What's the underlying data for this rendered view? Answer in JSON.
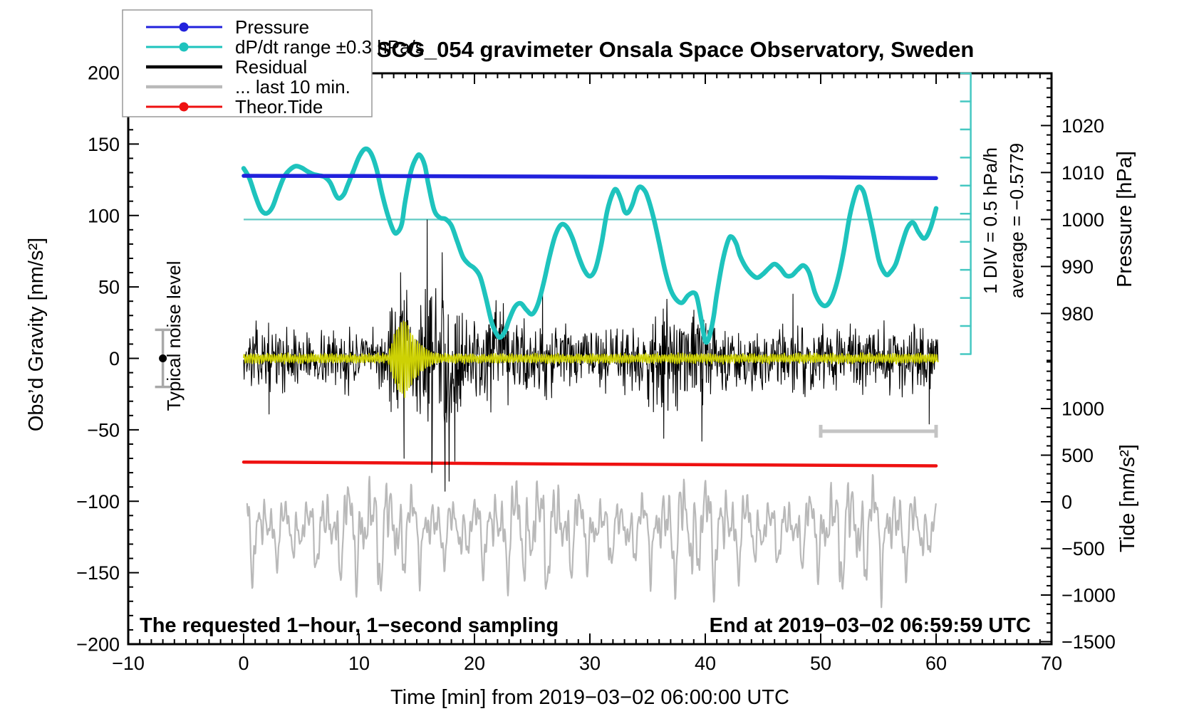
{
  "title": "SCG_054 gravimeter Onsala Space Observatory, Sweden",
  "annotations": {
    "bottom_left": "The requested 1−hour, 1−second sampling",
    "bottom_right": "End at 2019−03−02 06:59:59 UTC",
    "div_scale": "1 DIV = 0.5 hPa/h",
    "div_average": "average = −0.5779",
    "typical_noise": "Typical noise level"
  },
  "legend": {
    "items": [
      {
        "label": "Pressure",
        "color": "#2121dc",
        "dot": true,
        "width": 3
      },
      {
        "label": "dP/dt range ±0.3 hPa/s",
        "color": "#1ec3bd",
        "dot": true,
        "width": 3
      },
      {
        "label": "Residual",
        "color": "#000000",
        "dot": false,
        "width": 4.5
      },
      {
        "label": "... last 10 min.",
        "color": "#b9b9b9",
        "dot": false,
        "width": 4.5
      },
      {
        "label": "Theor.Tide",
        "color": "#ee1111",
        "dot": true,
        "width": 3
      }
    ]
  },
  "axes": {
    "x": {
      "label": "Time [min] from 2019−03−02 06:00:00 UTC",
      "range": [
        -10,
        70
      ],
      "minor_step": 1,
      "majors": [
        -10,
        0,
        10,
        20,
        30,
        40,
        50,
        60,
        70
      ],
      "major_labels": [
        "−10",
        "0",
        "10",
        "20",
        "30",
        "40",
        "50",
        "60",
        "70"
      ]
    },
    "y_left": {
      "label": "Obs’d Gravity [nm/s²]",
      "range": [
        -200,
        200
      ],
      "minor_step": 10,
      "majors": [
        -200,
        -150,
        -100,
        -50,
        0,
        50,
        100,
        150,
        200
      ],
      "major_labels": [
        "−200",
        "−150",
        "−100",
        "−50",
        "0",
        "50",
        "100",
        "150",
        "200"
      ]
    },
    "y_right_pressure": {
      "label": "Pressure [hPa]",
      "range": [
        970,
        1030
      ],
      "minor_step": 2,
      "majors": [
        980,
        990,
        1000,
        1010,
        1020
      ],
      "major_labels": [
        "980",
        "990",
        "1000",
        "1010",
        "1020"
      ]
    },
    "y_right_tide": {
      "label": "Tide [nm/s²]",
      "range": [
        -1500,
        1500
      ],
      "minor_step": 100,
      "majors": [
        -1500,
        -1000,
        -500,
        0,
        500,
        1000
      ],
      "major_labels": [
        "−1500",
        "−1000",
        "−500",
        "0",
        "500",
        "1000"
      ]
    }
  },
  "chart_data": {
    "type": "line",
    "x_units": "minutes",
    "grid": false,
    "legend_position": "top-left",
    "reference_line": {
      "pressure_hPa": 1000,
      "x_start": 0,
      "x_end": 63,
      "color": "#62cac4"
    },
    "div_bar": {
      "x": 63,
      "gravity_top": 199.5,
      "gravity_bottom": 3,
      "ticks": 11,
      "color": "#45c8c2"
    },
    "noise_level_marker": {
      "x": -7,
      "center": 0,
      "half_range": 20
    },
    "last10_scale_bar": {
      "x_start": 50,
      "x_end": 60,
      "gravity_y": -51
    },
    "series": [
      {
        "name": "pressure",
        "color": "#2121dc",
        "units": "hPa",
        "axis": "pressure",
        "stroke": 5.5,
        "points": [
          [
            0,
            1009.3
          ],
          [
            10,
            1009.25
          ],
          [
            20,
            1009.2
          ],
          [
            30,
            1009.1
          ],
          [
            40,
            1009.05
          ],
          [
            50,
            1009.0
          ],
          [
            60,
            1008.8
          ]
        ]
      },
      {
        "name": "dp_dt",
        "color": "#1ec3bd",
        "units": "gravity_axis",
        "axis": "gravity",
        "stroke": 6.5,
        "points": [
          [
            0,
            133
          ],
          [
            0.5,
            126
          ],
          [
            1,
            114
          ],
          [
            1.5,
            104
          ],
          [
            2,
            101.5
          ],
          [
            2.5,
            106
          ],
          [
            3,
            117
          ],
          [
            3.5,
            127
          ],
          [
            4,
            132
          ],
          [
            4.5,
            134.5
          ],
          [
            5,
            133.5
          ],
          [
            5.5,
            131
          ],
          [
            6,
            129
          ],
          [
            6.5,
            128
          ],
          [
            7,
            127
          ],
          [
            7.5,
            123
          ],
          [
            8,
            114
          ],
          [
            8.3,
            112
          ],
          [
            8.7,
            115
          ],
          [
            9,
            121
          ],
          [
            9.5,
            131
          ],
          [
            10,
            141
          ],
          [
            10.5,
            146.5
          ],
          [
            11,
            144
          ],
          [
            11.5,
            133
          ],
          [
            12,
            115
          ],
          [
            12.5,
            100
          ],
          [
            13,
            89
          ],
          [
            13.3,
            88
          ],
          [
            13.7,
            94
          ],
          [
            14,
            110
          ],
          [
            14.5,
            131
          ],
          [
            15,
            141
          ],
          [
            15.3,
            142
          ],
          [
            15.7,
            135
          ],
          [
            16,
            122
          ],
          [
            16.5,
            104
          ],
          [
            17,
            98.5
          ],
          [
            17.5,
            97.5
          ],
          [
            18,
            93
          ],
          [
            18.5,
            82
          ],
          [
            19,
            71
          ],
          [
            19.5,
            66
          ],
          [
            20,
            63
          ],
          [
            20.5,
            57
          ],
          [
            21,
            42
          ],
          [
            21.5,
            25
          ],
          [
            22,
            16
          ],
          [
            22.3,
            15
          ],
          [
            22.7,
            20
          ],
          [
            23,
            27
          ],
          [
            23.5,
            36
          ],
          [
            24,
            38.5
          ],
          [
            24.5,
            34
          ],
          [
            25,
            31
          ],
          [
            25.5,
            38
          ],
          [
            26,
            53
          ],
          [
            26.5,
            71
          ],
          [
            27,
            86
          ],
          [
            27.5,
            93.5
          ],
          [
            28,
            92
          ],
          [
            28.5,
            84
          ],
          [
            29,
            72
          ],
          [
            29.5,
            62
          ],
          [
            30,
            57.5
          ],
          [
            30.5,
            63
          ],
          [
            31,
            80
          ],
          [
            31.5,
            103
          ],
          [
            32,
            116
          ],
          [
            32.3,
            118
          ],
          [
            32.7,
            111
          ],
          [
            33,
            103
          ],
          [
            33.3,
            102
          ],
          [
            33.7,
            108
          ],
          [
            34,
            116
          ],
          [
            34.3,
            120
          ],
          [
            34.7,
            118
          ],
          [
            35,
            113
          ],
          [
            35.5,
            99
          ],
          [
            36,
            81
          ],
          [
            36.5,
            62
          ],
          [
            37,
            48
          ],
          [
            37.5,
            41
          ],
          [
            38,
            39
          ],
          [
            38.5,
            44
          ],
          [
            39,
            46
          ],
          [
            39.3,
            42
          ],
          [
            39.7,
            25
          ],
          [
            40,
            12
          ],
          [
            40.3,
            14
          ],
          [
            40.7,
            28
          ],
          [
            41,
            45
          ],
          [
            41.5,
            68
          ],
          [
            42,
            83
          ],
          [
            42.3,
            85
          ],
          [
            42.7,
            80
          ],
          [
            43,
            72
          ],
          [
            43.5,
            64
          ],
          [
            44,
            59
          ],
          [
            44.5,
            56.5
          ],
          [
            45,
            59
          ],
          [
            45.5,
            63
          ],
          [
            46,
            66
          ],
          [
            46.5,
            63
          ],
          [
            47,
            58
          ],
          [
            47.5,
            58
          ],
          [
            48,
            62
          ],
          [
            48.5,
            65
          ],
          [
            49,
            60
          ],
          [
            49.5,
            46
          ],
          [
            50,
            38.5
          ],
          [
            50.5,
            37
          ],
          [
            51,
            43
          ],
          [
            51.5,
            56
          ],
          [
            52,
            75
          ],
          [
            52.5,
            99
          ],
          [
            53,
            115
          ],
          [
            53.3,
            120
          ],
          [
            53.7,
            117
          ],
          [
            54,
            108
          ],
          [
            54.5,
            90
          ],
          [
            55,
            70
          ],
          [
            55.3,
            63
          ],
          [
            55.7,
            58.5
          ],
          [
            56,
            60
          ],
          [
            56.5,
            66
          ],
          [
            57,
            79
          ],
          [
            57.5,
            91
          ],
          [
            58,
            95
          ],
          [
            58.5,
            88
          ],
          [
            59,
            84
          ],
          [
            59.5,
            91
          ],
          [
            60,
            105
          ]
        ]
      },
      {
        "name": "theor_tide",
        "color": "#ee1111",
        "units": "gravity_axis",
        "axis": "gravity",
        "stroke": 4.5,
        "points": [
          [
            0,
            -72.6
          ],
          [
            15,
            -73.3
          ],
          [
            30,
            -74.0
          ],
          [
            45,
            -74.6
          ],
          [
            60,
            -75.2
          ]
        ]
      }
    ],
    "noise_series": [
      {
        "name": "residual",
        "color": "#000000",
        "axis": "gravity",
        "stroke": 1.1,
        "x_start": 0,
        "x_end": 60.2,
        "step": 0.045,
        "seed": 13,
        "mean": 0,
        "envelope": [
          [
            0,
            18
          ],
          [
            1,
            25
          ],
          [
            2,
            24
          ],
          [
            3,
            22
          ],
          [
            4,
            24
          ],
          [
            5,
            21
          ],
          [
            6,
            20
          ],
          [
            7,
            25
          ],
          [
            8,
            22
          ],
          [
            9,
            25
          ],
          [
            10,
            22
          ],
          [
            11,
            20
          ],
          [
            12,
            26
          ],
          [
            12.5,
            36
          ],
          [
            13,
            46
          ],
          [
            13.5,
            54
          ],
          [
            14,
            52
          ],
          [
            14.5,
            48
          ],
          [
            15,
            52
          ],
          [
            15.5,
            58
          ],
          [
            16,
            60
          ],
          [
            16.5,
            57
          ],
          [
            17,
            63
          ],
          [
            17.5,
            68
          ],
          [
            18,
            60
          ],
          [
            18.5,
            50
          ],
          [
            19,
            40
          ],
          [
            20,
            36
          ],
          [
            21,
            40
          ],
          [
            22,
            42
          ],
          [
            23,
            34
          ],
          [
            24,
            30
          ],
          [
            25,
            33
          ],
          [
            26,
            38
          ],
          [
            27,
            30
          ],
          [
            28,
            26
          ],
          [
            29,
            24
          ],
          [
            30,
            26
          ],
          [
            31,
            23
          ],
          [
            32,
            24
          ],
          [
            33,
            26
          ],
          [
            34,
            30
          ],
          [
            35,
            36
          ],
          [
            36,
            42
          ],
          [
            36.5,
            45
          ],
          [
            37,
            38
          ],
          [
            38,
            33
          ],
          [
            39,
            42
          ],
          [
            39.5,
            47
          ],
          [
            40,
            42
          ],
          [
            41,
            28
          ],
          [
            42,
            26
          ],
          [
            43,
            25
          ],
          [
            44,
            26
          ],
          [
            45,
            29
          ],
          [
            46,
            25
          ],
          [
            47,
            26
          ],
          [
            48,
            29
          ],
          [
            49,
            26
          ],
          [
            50,
            29
          ],
          [
            51,
            26
          ],
          [
            52,
            31
          ],
          [
            53,
            28
          ],
          [
            54,
            27
          ],
          [
            55,
            31
          ],
          [
            56,
            28
          ],
          [
            57,
            27
          ],
          [
            58,
            31
          ],
          [
            59,
            35
          ],
          [
            60,
            30
          ]
        ],
        "spikes": [
          [
            2.2,
            -39
          ],
          [
            13.6,
            60
          ],
          [
            13.9,
            -70
          ],
          [
            15.9,
            97
          ],
          [
            16.3,
            -80
          ],
          [
            17.2,
            74
          ],
          [
            17.45,
            -93
          ],
          [
            17.8,
            -86
          ],
          [
            18.3,
            -72
          ],
          [
            25.9,
            46
          ],
          [
            36.4,
            -56
          ],
          [
            39.7,
            -58
          ],
          [
            47.6,
            45
          ],
          [
            59.4,
            -46
          ]
        ]
      },
      {
        "name": "filtered_signal",
        "color": "#cdd104",
        "axis": "gravity",
        "stroke": 1.7,
        "x_start": 0,
        "x_end": 60.2,
        "step": 0.03,
        "seed": 29,
        "base_amplitude": 2.6,
        "carrier_period": 0.2,
        "spindle": {
          "start": 12.4,
          "peak_t": 14.0,
          "end": 17.8,
          "peak_amplitude": 27,
          "decay": 1.3
        }
      },
      {
        "name": "residual_last10",
        "color": "#b9b9b9",
        "axis": "gravity",
        "stroke": 2.2,
        "x_start": 0.3,
        "x_end": 60,
        "step": 0.04,
        "seed": 42,
        "center": -120,
        "harmonics_amp": [
          14,
          11,
          9,
          7,
          5.5,
          4
        ],
        "harmonics_freq": [
          0.55,
          0.9,
          1.45,
          2.2,
          3.3,
          4.7
        ],
        "modulation": {
          "amp": 0.3,
          "period": 14
        }
      }
    ]
  }
}
